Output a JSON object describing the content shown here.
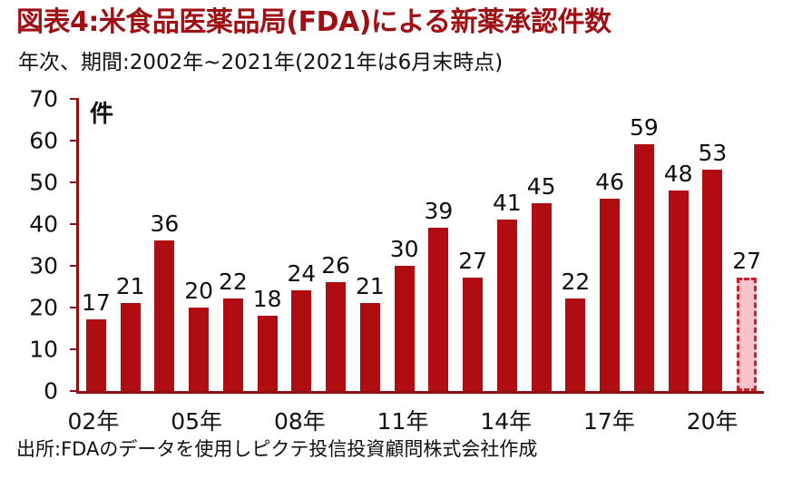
{
  "header": {
    "title": "図表4:米食品医薬品局(FDA)による新薬承認件数",
    "subtitle": "年次、期間:2002年~2021年(2021年は6月末時点)"
  },
  "footer": {
    "source": "出所:FDAのデータを使用しピクテ投信投資顧問株式会社作成"
  },
  "chart_data": {
    "type": "bar",
    "title": "図表4:米食品医薬品局(FDA)による新薬承認件数",
    "subtitle": "年次、期間:2002年~2021年(2021年は6月末時点)",
    "unit_label": "件",
    "categories": [
      "2002",
      "2003",
      "2004",
      "2005",
      "2006",
      "2007",
      "2008",
      "2009",
      "2010",
      "2011",
      "2012",
      "2013",
      "2014",
      "2015",
      "2016",
      "2017",
      "2018",
      "2019",
      "2020",
      "2021"
    ],
    "values": [
      17,
      21,
      36,
      20,
      22,
      18,
      24,
      26,
      21,
      30,
      39,
      27,
      41,
      45,
      22,
      46,
      59,
      48,
      53,
      27
    ],
    "x_tick_positions": [
      0,
      3,
      6,
      9,
      12,
      15,
      18
    ],
    "x_tick_labels": [
      "02年",
      "05年",
      "08年",
      "11年",
      "14年",
      "17年",
      "20年"
    ],
    "y_ticks": [
      0,
      10,
      20,
      30,
      40,
      50,
      60,
      70
    ],
    "ylim": [
      0,
      70
    ],
    "xlabel": "",
    "ylabel": "件",
    "grid": false,
    "legend": "none",
    "bar_color": "#b00d12",
    "axis_color": "#8f1114",
    "highlight_last": true,
    "highlight_note": "2021年は6月末時点(点線・薄塗り)",
    "highlight_fill": "#f8c3c8",
    "highlight_border_color": "#cf1f26"
  }
}
